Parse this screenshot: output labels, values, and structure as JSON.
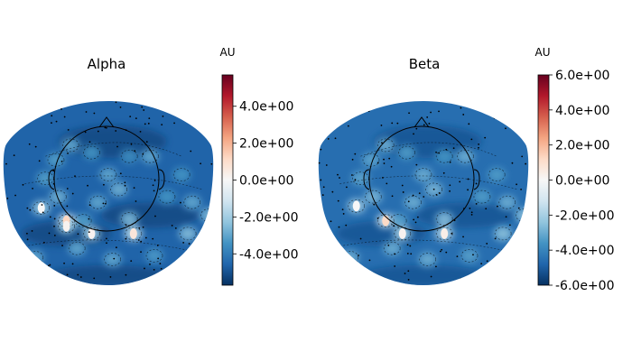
{
  "chart_data": [
    {
      "type": "heatmap",
      "title": "Alpha",
      "colorbar": {
        "unit": "AU",
        "range": [
          -5.7,
          5.7
        ],
        "ticks": [
          4.0,
          2.0,
          0.0,
          -2.0,
          -4.0
        ],
        "tick_labels": [
          "4.0e+00",
          "2.0e+00",
          "0.0e+00",
          "-2.0e+00",
          "-4.0e+00"
        ],
        "colormap": "RdBu_r"
      },
      "background_value": -4.6,
      "hotspots": [
        {
          "u": 0.3,
          "v": 0.65,
          "value": -1.0
        },
        {
          "u": 0.42,
          "v": 0.72,
          "value": -2.0
        },
        {
          "u": 0.62,
          "v": 0.72,
          "value": -1.5
        },
        {
          "u": 0.18,
          "v": 0.58,
          "value": -2.2
        },
        {
          "u": 0.9,
          "v": 0.55,
          "value": -3.0
        },
        {
          "u": 0.88,
          "v": 0.72,
          "value": -2.5
        },
        {
          "u": 0.98,
          "v": 0.62,
          "value": -2.6
        },
        {
          "u": 0.7,
          "v": 0.3,
          "value": -3.0
        },
        {
          "u": 0.55,
          "v": 0.48,
          "value": -2.8
        },
        {
          "u": 0.45,
          "v": 0.55,
          "value": -3.0
        },
        {
          "u": 0.38,
          "v": 0.65,
          "value": -3.2
        },
        {
          "u": 0.42,
          "v": 0.28,
          "value": -3.4
        },
        {
          "u": 0.6,
          "v": 0.3,
          "value": -3.6
        },
        {
          "u": 0.3,
          "v": 0.68,
          "value": -2.0
        },
        {
          "u": 0.32,
          "v": 0.24,
          "value": -3.0
        },
        {
          "u": 0.6,
          "v": 0.64,
          "value": -2.6
        },
        {
          "u": 0.25,
          "v": 0.32,
          "value": -3.2
        },
        {
          "u": 0.26,
          "v": 0.52,
          "value": -2.8
        },
        {
          "u": 0.35,
          "v": 0.8,
          "value": -3.0
        },
        {
          "u": 0.78,
          "v": 0.52,
          "value": -3.4
        },
        {
          "u": 0.5,
          "v": 0.4,
          "value": -3.0
        },
        {
          "u": 0.2,
          "v": 0.42,
          "value": -3.2
        },
        {
          "u": 0.15,
          "v": 0.85,
          "value": -3.0
        },
        {
          "u": 0.85,
          "v": 0.4,
          "value": -3.4
        },
        {
          "u": 0.52,
          "v": 0.86,
          "value": -3.0
        },
        {
          "u": 0.72,
          "v": 0.84,
          "value": -3.3
        }
      ]
    },
    {
      "type": "heatmap",
      "title": "Beta",
      "colorbar": {
        "unit": "AU",
        "range": [
          -6.0,
          6.0
        ],
        "ticks": [
          6.0,
          4.0,
          2.0,
          0.0,
          -2.0,
          -4.0,
          -6.0
        ],
        "tick_labels": [
          "6.0e+00",
          "4.0e+00",
          "2.0e+00",
          "0.0e+00",
          "-2.0e+00",
          "-4.0e+00",
          "-6.0e+00"
        ],
        "colormap": "RdBu_r"
      },
      "background_value": -4.6,
      "hotspots": [
        {
          "u": 0.32,
          "v": 0.65,
          "value": -1.0
        },
        {
          "u": 0.4,
          "v": 0.72,
          "value": -2.0
        },
        {
          "u": 0.6,
          "v": 0.72,
          "value": -1.8
        },
        {
          "u": 0.18,
          "v": 0.57,
          "value": -2.2
        },
        {
          "u": 0.9,
          "v": 0.55,
          "value": -3.0
        },
        {
          "u": 0.88,
          "v": 0.72,
          "value": -2.5
        },
        {
          "u": 0.98,
          "v": 0.62,
          "value": -2.6
        },
        {
          "u": 0.7,
          "v": 0.3,
          "value": -3.0
        },
        {
          "u": 0.55,
          "v": 0.48,
          "value": -2.8
        },
        {
          "u": 0.45,
          "v": 0.55,
          "value": -3.0
        },
        {
          "u": 0.38,
          "v": 0.65,
          "value": -3.2
        },
        {
          "u": 0.42,
          "v": 0.28,
          "value": -3.4
        },
        {
          "u": 0.6,
          "v": 0.3,
          "value": -3.6
        },
        {
          "u": 0.32,
          "v": 0.24,
          "value": -3.0
        },
        {
          "u": 0.6,
          "v": 0.64,
          "value": -2.6
        },
        {
          "u": 0.25,
          "v": 0.32,
          "value": -3.2
        },
        {
          "u": 0.26,
          "v": 0.52,
          "value": -2.8
        },
        {
          "u": 0.35,
          "v": 0.8,
          "value": -3.0
        },
        {
          "u": 0.78,
          "v": 0.52,
          "value": -3.4
        },
        {
          "u": 0.5,
          "v": 0.4,
          "value": -3.0
        },
        {
          "u": 0.2,
          "v": 0.42,
          "value": -3.2
        },
        {
          "u": 0.15,
          "v": 0.85,
          "value": -3.0
        },
        {
          "u": 0.85,
          "v": 0.4,
          "value": -3.4
        },
        {
          "u": 0.52,
          "v": 0.86,
          "value": -3.0
        },
        {
          "u": 0.72,
          "v": 0.84,
          "value": -3.3
        }
      ]
    }
  ]
}
